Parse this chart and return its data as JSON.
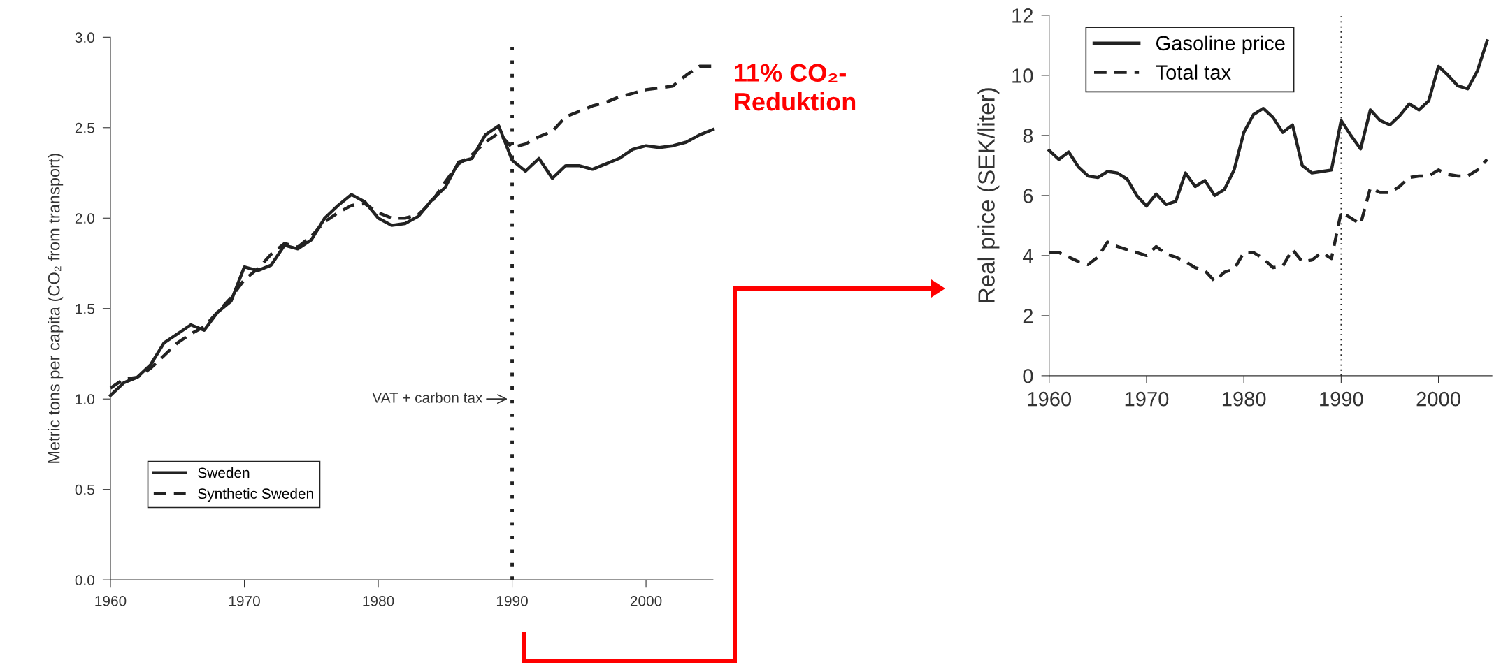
{
  "chart_data": [
    {
      "type": "line",
      "ylabel": "Metric tons per capita (CO₂ from transport)",
      "xlim": [
        1960,
        2005
      ],
      "ylim": [
        0,
        3.0
      ],
      "xticks": [
        1960,
        1970,
        1980,
        1990,
        2000
      ],
      "yticks": [
        {
          "value": 0,
          "label": "0.0"
        },
        0.5,
        {
          "value": 1,
          "label": "1.0"
        },
        1.5,
        {
          "value": 2,
          "label": "2.0"
        },
        2.5,
        {
          "value": 3,
          "label": "3.0"
        }
      ],
      "grid": false,
      "legend": "bottom left",
      "annotations": [
        "11% CO₂-\nReduktion"
      ],
      "ref_lines": [
        {
          "axis": "x",
          "value": 1990,
          "label": "VAT + carbon tax",
          "line_style": "dotted",
          "color": "#222222"
        }
      ],
      "x": [
        1960,
        1961,
        1962,
        1963,
        1964,
        1965,
        1966,
        1967,
        1968,
        1969,
        1970,
        1971,
        1972,
        1973,
        1974,
        1975,
        1976,
        1977,
        1978,
        1979,
        1980,
        1981,
        1982,
        1983,
        1984,
        1985,
        1986,
        1987,
        1988,
        1989,
        1990,
        1991,
        1992,
        1993,
        1994,
        1995,
        1996,
        1997,
        1998,
        1999,
        2000,
        2001,
        2002,
        2003,
        2004,
        2005
      ],
      "series": [
        {
          "name": "Sweden",
          "color": "#222222",
          "line_style": "solid",
          "values": [
            1.02,
            1.09,
            1.12,
            1.19,
            1.31,
            1.36,
            1.41,
            1.38,
            1.48,
            1.54,
            1.73,
            1.71,
            1.74,
            1.85,
            1.83,
            1.88,
            2.0,
            2.07,
            2.13,
            2.09,
            2.0,
            1.96,
            1.97,
            2.01,
            2.1,
            2.17,
            2.31,
            2.33,
            2.46,
            2.51,
            2.32,
            2.26,
            2.33,
            2.22,
            2.29,
            2.29,
            2.27,
            2.3,
            2.33,
            2.38,
            2.4,
            2.39,
            2.4,
            2.42,
            2.46,
            2.49
          ]
        },
        {
          "name": "Synthetic Sweden",
          "color": "#222222",
          "line_style": "dashed",
          "values": [
            1.06,
            1.11,
            1.12,
            1.17,
            1.24,
            1.31,
            1.36,
            1.4,
            1.48,
            1.56,
            1.66,
            1.72,
            1.8,
            1.86,
            1.84,
            1.9,
            1.98,
            2.03,
            2.07,
            2.08,
            2.03,
            2.0,
            2.0,
            2.02,
            2.09,
            2.2,
            2.3,
            2.35,
            2.42,
            2.47,
            2.39,
            2.41,
            2.45,
            2.48,
            2.56,
            2.59,
            2.62,
            2.64,
            2.67,
            2.69,
            2.71,
            2.72,
            2.73,
            2.79,
            2.84,
            2.84
          ]
        }
      ]
    },
    {
      "type": "line",
      "ylabel": "Real price (SEK/liter)",
      "xlim": [
        1960,
        2005.5
      ],
      "ylim": [
        0,
        12
      ],
      "xticks": [
        1960,
        1970,
        1980,
        1990,
        2000
      ],
      "yticks": [
        0,
        2,
        4,
        6,
        8,
        10,
        12
      ],
      "grid": false,
      "legend": "top left",
      "ref_lines": [
        {
          "axis": "x",
          "value": 1990,
          "line_style": "dotted",
          "color": "#222222"
        }
      ],
      "x": [
        1960,
        1961,
        1962,
        1963,
        1964,
        1965,
        1966,
        1967,
        1968,
        1969,
        1970,
        1971,
        1972,
        1973,
        1974,
        1975,
        1976,
        1977,
        1978,
        1979,
        1980,
        1981,
        1982,
        1983,
        1984,
        1985,
        1986,
        1987,
        1988,
        1989,
        1990,
        1991,
        1992,
        1993,
        1994,
        1995,
        1996,
        1997,
        1998,
        1999,
        2000,
        2001,
        2002,
        2003,
        2004,
        2005
      ],
      "series": [
        {
          "name": "Gasoline price",
          "color": "#222222",
          "line_style": "solid",
          "values": [
            7.5,
            7.2,
            7.45,
            6.95,
            6.65,
            6.6,
            6.8,
            6.75,
            6.55,
            6.0,
            5.65,
            6.05,
            5.7,
            5.8,
            6.75,
            6.3,
            6.5,
            6.0,
            6.2,
            6.85,
            8.1,
            8.7,
            8.9,
            8.6,
            8.1,
            8.35,
            7.0,
            6.75,
            6.8,
            6.85,
            8.5,
            8.0,
            7.55,
            8.85,
            8.5,
            8.35,
            8.65,
            9.05,
            8.85,
            9.15,
            10.3,
            10.0,
            9.65,
            9.55,
            10.15,
            11.15
          ]
        },
        {
          "name": "Total tax",
          "color": "#222222",
          "line_style": "dashed",
          "values": [
            4.1,
            4.1,
            3.95,
            3.8,
            3.7,
            3.95,
            4.45,
            4.3,
            4.2,
            4.1,
            4.0,
            4.3,
            4.05,
            3.95,
            3.8,
            3.6,
            3.5,
            3.15,
            3.45,
            3.55,
            4.1,
            4.1,
            3.9,
            3.6,
            3.65,
            4.2,
            3.8,
            3.85,
            4.1,
            3.9,
            5.45,
            5.25,
            5.05,
            6.25,
            6.1,
            6.1,
            6.3,
            6.6,
            6.65,
            6.65,
            6.85,
            6.7,
            6.65,
            6.65,
            6.85,
            7.2
          ]
        }
      ]
    }
  ]
}
